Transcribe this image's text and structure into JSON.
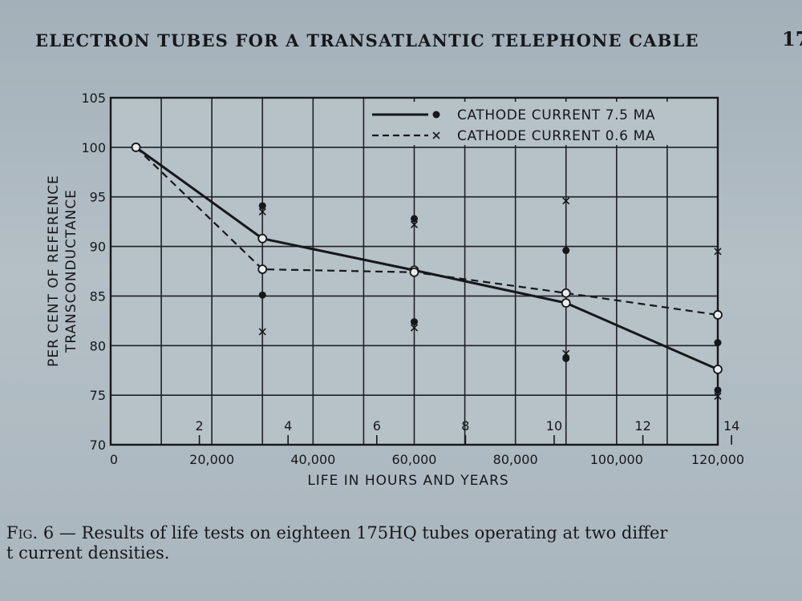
{
  "header": {
    "running_title": "ELECTRON TUBES FOR A TRANSATLANTIC TELEPHONE CABLE",
    "page_number": "17"
  },
  "caption": {
    "label": "Fig. 6",
    "text_line1": " — Results of life tests on eighteen 175HQ tubes operating at two differ",
    "text_line2": "t current densities."
  },
  "chart_data": {
    "type": "line",
    "title": "",
    "xlabel": "LIFE IN HOURS AND YEARS",
    "ylabel_line1": "PER CENT OF REFERENCE",
    "ylabel_line2": "TRANSCONDUCTANCE",
    "xlim": [
      0,
      120000
    ],
    "ylim": [
      70,
      105
    ],
    "x_ticks": [
      0,
      20000,
      40000,
      60000,
      80000,
      100000,
      120000
    ],
    "x_tick_labels": [
      "0",
      "20,000",
      "40,000",
      "60,000",
      "80,000",
      "100,000",
      "120,000"
    ],
    "y_ticks": [
      70,
      75,
      80,
      85,
      90,
      95,
      100,
      105
    ],
    "y_tick_labels": [
      "70",
      "75",
      "80",
      "85",
      "90",
      "95",
      "100",
      "105"
    ],
    "year_ticks": [
      2,
      4,
      6,
      8,
      10,
      12,
      14
    ],
    "year_tick_labels": [
      "2",
      "4",
      "6",
      "8",
      "10",
      "12",
      "14"
    ],
    "grid": true,
    "legend_position": "top-right",
    "series": [
      {
        "name": "CATHODE CURRENT 7.5 MA",
        "style": "solid",
        "marker": "dot",
        "x": [
          5000,
          30000,
          60000,
          90000,
          120000
        ],
        "y": [
          100,
          90.8,
          87.6,
          84.3,
          77.6
        ],
        "scatter": [
          {
            "x": 30000,
            "y": 94.1
          },
          {
            "x": 30000,
            "y": 85.1
          },
          {
            "x": 60000,
            "y": 92.8
          },
          {
            "x": 60000,
            "y": 82.4
          },
          {
            "x": 90000,
            "y": 89.6
          },
          {
            "x": 90000,
            "y": 78.7
          },
          {
            "x": 120000,
            "y": 80.3
          },
          {
            "x": 120000,
            "y": 75.5
          }
        ]
      },
      {
        "name": "CATHODE CURRENT 0.6 MA",
        "style": "dashed",
        "marker": "x",
        "x": [
          5000,
          30000,
          60000,
          90000,
          120000
        ],
        "y": [
          100,
          87.7,
          87.4,
          85.3,
          83.1
        ],
        "scatter": [
          {
            "x": 30000,
            "y": 93.5
          },
          {
            "x": 30000,
            "y": 81.4
          },
          {
            "x": 60000,
            "y": 92.2
          },
          {
            "x": 60000,
            "y": 81.8
          },
          {
            "x": 90000,
            "y": 94.6
          },
          {
            "x": 90000,
            "y": 79.2
          },
          {
            "x": 120000,
            "y": 89.5
          },
          {
            "x": 120000,
            "y": 74.9
          }
        ]
      }
    ],
    "colors": {
      "ink": "#15181b",
      "plot_bg": "#b7c1c8",
      "grid": "#1d2125"
    }
  }
}
